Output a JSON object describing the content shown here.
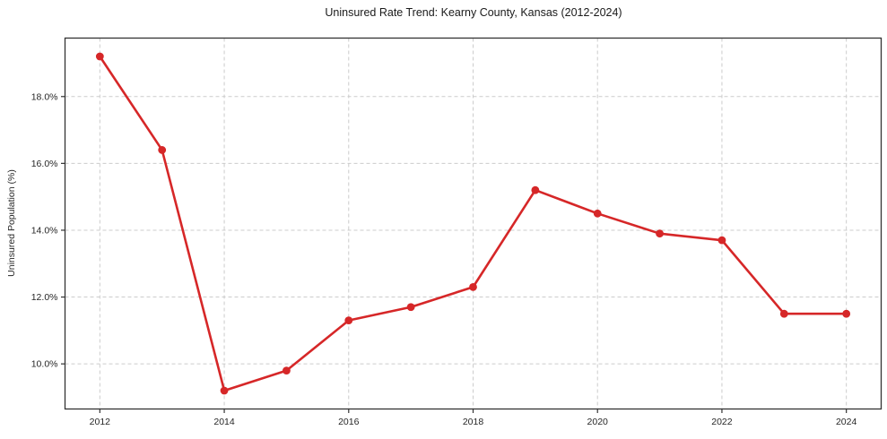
{
  "chart_data": {
    "type": "line",
    "title": "Uninsured Rate Trend: Kearny County, Kansas (2012-2024)",
    "xlabel": "",
    "ylabel": "Uninsured Population (%)",
    "x": [
      2012,
      2013,
      2014,
      2015,
      2016,
      2017,
      2018,
      2019,
      2020,
      2021,
      2022,
      2023,
      2024
    ],
    "values": [
      19.2,
      16.4,
      9.2,
      9.8,
      11.3,
      11.7,
      12.3,
      15.2,
      14.5,
      13.9,
      13.7,
      11.5,
      11.5
    ],
    "xtick_values": [
      2012,
      2014,
      2016,
      2018,
      2020,
      2022,
      2024
    ],
    "xtick_labels": [
      "2012",
      "2014",
      "2016",
      "2018",
      "2020",
      "2022",
      "2024"
    ],
    "ytick_values": [
      10,
      12,
      14,
      16,
      18
    ],
    "ytick_labels": [
      "10.0%",
      "12.0%",
      "14.0%",
      "16.0%",
      "18.0%"
    ],
    "xlim": [
      2011.44,
      2024.56
    ],
    "ylim": [
      8.65,
      19.75
    ],
    "grid": true,
    "legend": false,
    "line_color": "#d62728",
    "marker": "circle"
  },
  "style": {
    "grid_color": "#cccccc",
    "axis_color": "#333333",
    "tick_text_color": "#262626",
    "background": "#ffffff"
  }
}
